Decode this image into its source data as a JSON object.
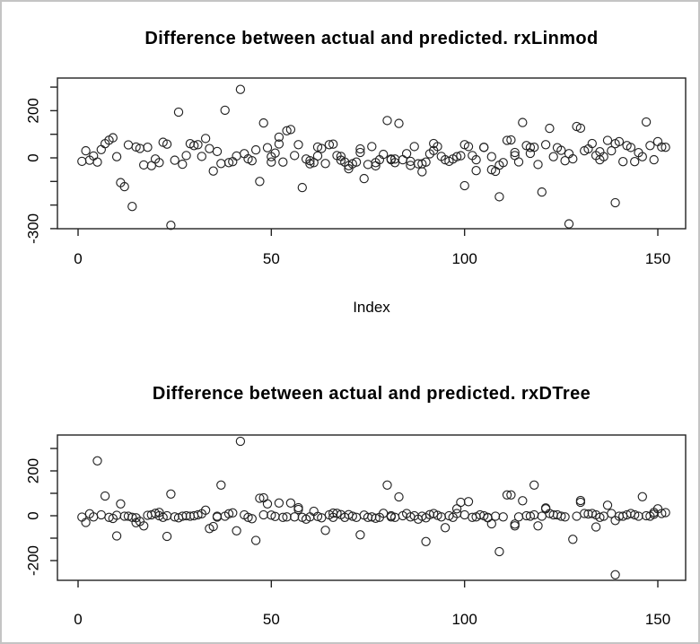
{
  "window": {
    "background": "#ffffff",
    "border_color": "#c4c4c4"
  },
  "plot_stroke_color": "#222222",
  "text_color": "#000000",
  "marker": "open-circle",
  "chart_data": [
    {
      "type": "scatter",
      "title": "Difference between actual and predicted. rxLinmod",
      "xlabel": "Index",
      "ylabel": "",
      "grid": false,
      "legend": null,
      "x_ticks": [
        0,
        50,
        100,
        150
      ],
      "y_ticks": [
        -300,
        -200,
        -100,
        0,
        100,
        200,
        300
      ],
      "y_tick_labels_shown": [
        -300,
        0,
        200
      ],
      "xlim": [
        -5,
        157
      ],
      "ylim": [
        -300,
        338
      ],
      "points": [
        [
          1,
          -15
        ],
        [
          2,
          30
        ],
        [
          3,
          -10
        ],
        [
          4,
          8
        ],
        [
          5,
          -18
        ],
        [
          6,
          35
        ],
        [
          7,
          60
        ],
        [
          8,
          75
        ],
        [
          9,
          85
        ],
        [
          10,
          5
        ],
        [
          11,
          -105
        ],
        [
          12,
          -122
        ],
        [
          13,
          55
        ],
        [
          14,
          -206
        ],
        [
          15,
          46
        ],
        [
          16,
          40
        ],
        [
          17,
          -30
        ],
        [
          18,
          45
        ],
        [
          19,
          -33
        ],
        [
          20,
          -5
        ],
        [
          21,
          -20
        ],
        [
          22,
          66
        ],
        [
          23,
          58
        ],
        [
          24,
          -286
        ],
        [
          25,
          -10
        ],
        [
          26,
          194
        ],
        [
          27,
          -27
        ],
        [
          28,
          10
        ],
        [
          29,
          60
        ],
        [
          30,
          52
        ],
        [
          31,
          56
        ],
        [
          32,
          6
        ],
        [
          33,
          82
        ],
        [
          34,
          39
        ],
        [
          35,
          -56
        ],
        [
          36,
          27
        ],
        [
          37,
          -24
        ],
        [
          38,
          202
        ],
        [
          39,
          -20
        ],
        [
          40,
          -16
        ],
        [
          41,
          8
        ],
        [
          42,
          290
        ],
        [
          43,
          18
        ],
        [
          44,
          -4
        ],
        [
          45,
          -12
        ],
        [
          46,
          34
        ],
        [
          47,
          -100
        ],
        [
          48,
          148
        ],
        [
          49,
          43
        ],
        [
          50,
          -18
        ],
        [
          50,
          5
        ],
        [
          51,
          20
        ],
        [
          52,
          59
        ],
        [
          52,
          88
        ],
        [
          53,
          -18
        ],
        [
          54,
          115
        ],
        [
          55,
          120
        ],
        [
          56,
          10
        ],
        [
          57,
          56
        ],
        [
          58,
          -126
        ],
        [
          59,
          -5
        ],
        [
          60,
          -12
        ],
        [
          60,
          -25
        ],
        [
          61,
          -20
        ],
        [
          62,
          8
        ],
        [
          62,
          46
        ],
        [
          63,
          40
        ],
        [
          64,
          -24
        ],
        [
          65,
          56
        ],
        [
          66,
          58
        ],
        [
          67,
          10
        ],
        [
          68,
          6
        ],
        [
          68,
          -10
        ],
        [
          69,
          -18
        ],
        [
          70,
          -33
        ],
        [
          70,
          -46
        ],
        [
          71,
          -25
        ],
        [
          72,
          -18
        ],
        [
          73,
          23
        ],
        [
          73,
          38
        ],
        [
          74,
          -88
        ],
        [
          75,
          -28
        ],
        [
          76,
          48
        ],
        [
          77,
          -20
        ],
        [
          77,
          -34
        ],
        [
          78,
          -8
        ],
        [
          79,
          15
        ],
        [
          80,
          158
        ],
        [
          81,
          -5
        ],
        [
          81,
          -8
        ],
        [
          82,
          -5
        ],
        [
          82,
          -20
        ],
        [
          83,
          146
        ],
        [
          84,
          -8
        ],
        [
          85,
          18
        ],
        [
          86,
          -32
        ],
        [
          86,
          -15
        ],
        [
          87,
          48
        ],
        [
          88,
          -25
        ],
        [
          89,
          -25
        ],
        [
          89,
          -59
        ],
        [
          90,
          -18
        ],
        [
          91,
          17
        ],
        [
          92,
          31
        ],
        [
          92,
          61
        ],
        [
          93,
          48
        ],
        [
          94,
          6
        ],
        [
          95,
          -8
        ],
        [
          96,
          -15
        ],
        [
          97,
          -5
        ],
        [
          98,
          5
        ],
        [
          99,
          9
        ],
        [
          100,
          -118
        ],
        [
          100,
          56
        ],
        [
          101,
          48
        ],
        [
          102,
          10
        ],
        [
          103,
          -8
        ],
        [
          103,
          -54
        ],
        [
          105,
          45
        ],
        [
          105,
          44
        ],
        [
          107,
          5
        ],
        [
          107,
          -50
        ],
        [
          108,
          -57
        ],
        [
          109,
          -165
        ],
        [
          109,
          -31
        ],
        [
          110,
          -20
        ],
        [
          111,
          74
        ],
        [
          112,
          76
        ],
        [
          113,
          23
        ],
        [
          113,
          10
        ],
        [
          114,
          -17
        ],
        [
          115,
          150
        ],
        [
          116,
          52
        ],
        [
          117,
          44
        ],
        [
          117,
          19
        ],
        [
          118,
          45
        ],
        [
          119,
          -28
        ],
        [
          120,
          -145
        ],
        [
          121,
          56
        ],
        [
          122,
          125
        ],
        [
          123,
          5
        ],
        [
          124,
          43
        ],
        [
          125,
          32
        ],
        [
          126,
          -12
        ],
        [
          127,
          18
        ],
        [
          127,
          -280
        ],
        [
          128,
          -4
        ],
        [
          129,
          133
        ],
        [
          130,
          126
        ],
        [
          131,
          30
        ],
        [
          132,
          38
        ],
        [
          133,
          61
        ],
        [
          134,
          10
        ],
        [
          135,
          -8
        ],
        [
          135,
          26
        ],
        [
          136,
          5
        ],
        [
          137,
          74
        ],
        [
          138,
          30
        ],
        [
          139,
          -190
        ],
        [
          139,
          60
        ],
        [
          140,
          69
        ],
        [
          141,
          -16
        ],
        [
          142,
          52
        ],
        [
          143,
          44
        ],
        [
          144,
          -16
        ],
        [
          145,
          22
        ],
        [
          146,
          5
        ],
        [
          147,
          152
        ],
        [
          148,
          52
        ],
        [
          149,
          -8
        ],
        [
          150,
          69
        ],
        [
          151,
          46
        ],
        [
          152,
          45
        ]
      ]
    },
    {
      "type": "scatter",
      "title": "Difference between actual and predicted. rxDTree",
      "xlabel": "",
      "ylabel": "",
      "grid": false,
      "legend": null,
      "x_ticks": [
        0,
        50,
        100,
        150
      ],
      "y_ticks": [
        -200,
        -100,
        0,
        100,
        200,
        300
      ],
      "y_tick_labels_shown": [
        -200,
        0,
        200
      ],
      "xlim": [
        -5,
        157
      ],
      "ylim": [
        -288,
        360
      ],
      "points": [
        [
          1,
          -6
        ],
        [
          2,
          -30
        ],
        [
          3,
          9
        ],
        [
          4,
          -5
        ],
        [
          5,
          245
        ],
        [
          6,
          4
        ],
        [
          7,
          88
        ],
        [
          8,
          -7
        ],
        [
          9,
          -12
        ],
        [
          10,
          2
        ],
        [
          10,
          -90
        ],
        [
          11,
          53
        ],
        [
          12,
          -2
        ],
        [
          13,
          -2
        ],
        [
          14,
          -7
        ],
        [
          15,
          -9
        ],
        [
          15,
          -31
        ],
        [
          16,
          -25
        ],
        [
          17,
          -45
        ],
        [
          18,
          2
        ],
        [
          19,
          4
        ],
        [
          20,
          11
        ],
        [
          21,
          15
        ],
        [
          21,
          0
        ],
        [
          22,
          -7
        ],
        [
          23,
          0
        ],
        [
          23,
          -92
        ],
        [
          24,
          97
        ],
        [
          25,
          -5
        ],
        [
          26,
          -9
        ],
        [
          27,
          -2
        ],
        [
          28,
          0
        ],
        [
          29,
          -2
        ],
        [
          30,
          0
        ],
        [
          31,
          4
        ],
        [
          32,
          9
        ],
        [
          33,
          25
        ],
        [
          34,
          -57
        ],
        [
          35,
          -48
        ],
        [
          36,
          -6
        ],
        [
          36,
          -2
        ],
        [
          37,
          137
        ],
        [
          38,
          -2
        ],
        [
          39,
          9
        ],
        [
          40,
          13
        ],
        [
          41,
          -67
        ],
        [
          42,
          332
        ],
        [
          43,
          4
        ],
        [
          44,
          -7
        ],
        [
          45,
          -13
        ],
        [
          46,
          -110
        ],
        [
          47,
          78
        ],
        [
          48,
          80
        ],
        [
          48,
          4
        ],
        [
          49,
          53
        ],
        [
          50,
          3
        ],
        [
          51,
          -3
        ],
        [
          52,
          57
        ],
        [
          53,
          -7
        ],
        [
          54,
          -5
        ],
        [
          55,
          57
        ],
        [
          56,
          -5
        ],
        [
          57,
          36
        ],
        [
          57,
          28
        ],
        [
          58,
          -7
        ],
        [
          59,
          -15
        ],
        [
          60,
          -5
        ],
        [
          61,
          20
        ],
        [
          62,
          -3
        ],
        [
          63,
          -9
        ],
        [
          64,
          -65
        ],
        [
          65,
          4
        ],
        [
          66,
          12
        ],
        [
          66,
          -7
        ],
        [
          67,
          11
        ],
        [
          68,
          5
        ],
        [
          69,
          -7
        ],
        [
          70,
          5
        ],
        [
          71,
          -2
        ],
        [
          72,
          -7
        ],
        [
          73,
          -85
        ],
        [
          74,
          3
        ],
        [
          75,
          -7
        ],
        [
          76,
          -5
        ],
        [
          77,
          -11
        ],
        [
          78,
          -7
        ],
        [
          79,
          11
        ],
        [
          80,
          137
        ],
        [
          81,
          -5
        ],
        [
          81,
          0
        ],
        [
          82,
          -7
        ],
        [
          83,
          84
        ],
        [
          84,
          0
        ],
        [
          85,
          10
        ],
        [
          86,
          -5
        ],
        [
          87,
          0
        ],
        [
          88,
          -15
        ],
        [
          89,
          -2
        ],
        [
          90,
          -9
        ],
        [
          90,
          -115
        ],
        [
          91,
          5
        ],
        [
          92,
          10
        ],
        [
          93,
          2
        ],
        [
          94,
          -5
        ],
        [
          95,
          -53
        ],
        [
          96,
          0
        ],
        [
          97,
          -7
        ],
        [
          98,
          10
        ],
        [
          98,
          31
        ],
        [
          99,
          60
        ],
        [
          100,
          4
        ],
        [
          101,
          63
        ],
        [
          102,
          -7
        ],
        [
          103,
          -5
        ],
        [
          104,
          4
        ],
        [
          105,
          0
        ],
        [
          106,
          -7
        ],
        [
          106,
          -9
        ],
        [
          107,
          -36
        ],
        [
          108,
          -2
        ],
        [
          109,
          -160
        ],
        [
          110,
          -5
        ],
        [
          111,
          93
        ],
        [
          112,
          93
        ],
        [
          113,
          -45
        ],
        [
          113,
          -37
        ],
        [
          114,
          -5
        ],
        [
          115,
          67
        ],
        [
          116,
          0
        ],
        [
          117,
          -2
        ],
        [
          118,
          137
        ],
        [
          118,
          4
        ],
        [
          119,
          -45
        ],
        [
          120,
          -2
        ],
        [
          121,
          31
        ],
        [
          121,
          35
        ],
        [
          122,
          10
        ],
        [
          123,
          4
        ],
        [
          124,
          4
        ],
        [
          125,
          -2
        ],
        [
          126,
          -5
        ],
        [
          128,
          -105
        ],
        [
          129,
          -2
        ],
        [
          130,
          60
        ],
        [
          130,
          68
        ],
        [
          131,
          10
        ],
        [
          132,
          8
        ],
        [
          133,
          10
        ],
        [
          134,
          4
        ],
        [
          134,
          -50
        ],
        [
          135,
          -7
        ],
        [
          136,
          -2
        ],
        [
          137,
          47
        ],
        [
          138,
          10
        ],
        [
          139,
          -263
        ],
        [
          139,
          -21
        ],
        [
          140,
          -2
        ],
        [
          141,
          -2
        ],
        [
          142,
          4
        ],
        [
          143,
          10
        ],
        [
          144,
          4
        ],
        [
          145,
          -2
        ],
        [
          146,
          85
        ],
        [
          147,
          0
        ],
        [
          148,
          -2
        ],
        [
          149,
          7
        ],
        [
          149,
          15
        ],
        [
          150,
          31
        ],
        [
          151,
          10
        ],
        [
          152,
          14
        ]
      ]
    }
  ]
}
